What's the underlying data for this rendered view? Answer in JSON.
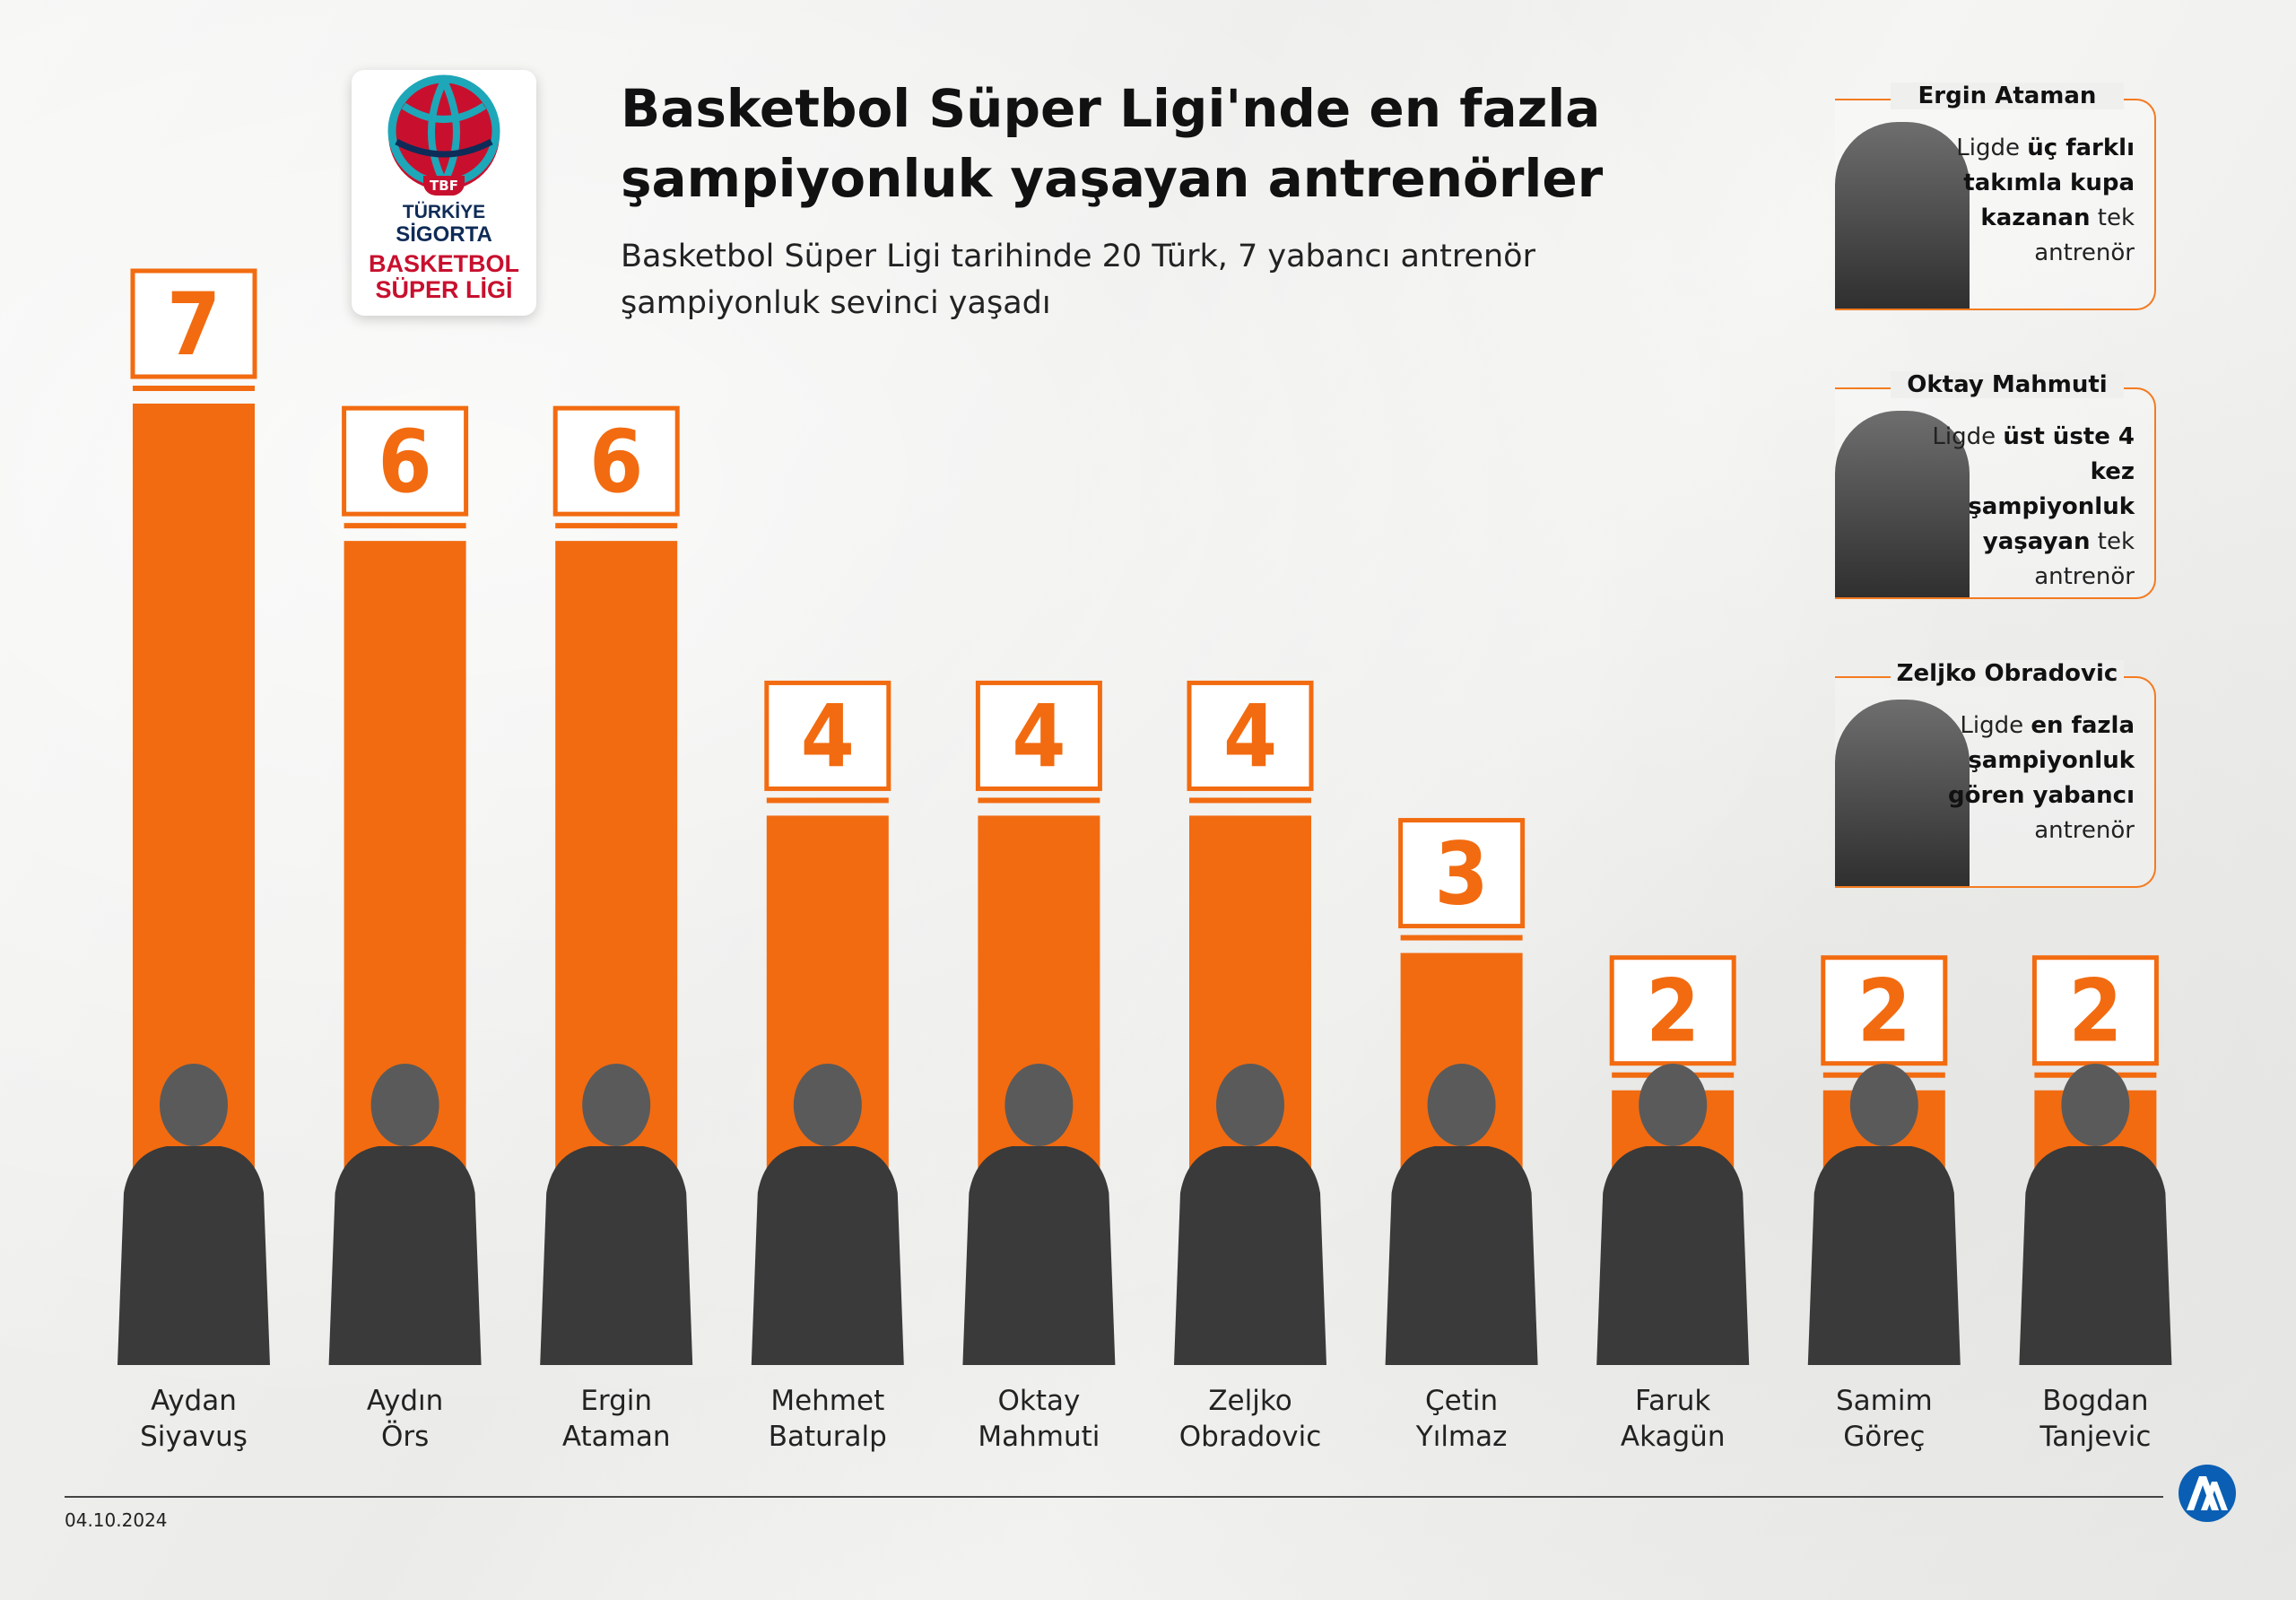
{
  "header": {
    "title_line1": "Basketbol Süper Ligi'nde en fazla",
    "title_line2": "şampiyonluk yaşayan antrenörler",
    "subtitle_line1": "Basketbol Süper Ligi tarihinde 20 Türk, 7 yabancı antrenör",
    "subtitle_line2": "şampiyonluk sevinci yaşadı"
  },
  "logo": {
    "tbf": "TBF",
    "line1": "TÜRKİYE",
    "line2": "SİGORTA",
    "line3": "BASKETBOL",
    "line4": "SÜPER LİGİ"
  },
  "colors": {
    "bar": "#f26b10",
    "info_border": "#f47b20",
    "photo": "#3a3a3a"
  },
  "chart_data": {
    "type": "bar",
    "categories": [
      [
        "Aydan",
        "Siyavuş"
      ],
      [
        "Aydın",
        "Örs"
      ],
      [
        "Ergin",
        "Ataman"
      ],
      [
        "Mehmet",
        "Baturalp"
      ],
      [
        "Oktay",
        "Mahmuti"
      ],
      [
        "Zeljko",
        "Obradovic"
      ],
      [
        "Çetin",
        "Yılmaz"
      ],
      [
        "Faruk",
        "Akagün"
      ],
      [
        "Samim",
        "Göreç"
      ],
      [
        "Bogdan",
        "Tanjevic"
      ]
    ],
    "values": [
      7,
      6,
      6,
      4,
      4,
      4,
      3,
      2,
      2,
      2
    ],
    "ylim": [
      0,
      7
    ],
    "grid": false,
    "data_labels": true
  },
  "info_cards": [
    {
      "name": "Ergin Ataman",
      "text_parts": [
        [
          "Ligde ",
          false
        ],
        [
          "üç farklı takımla kupa kazanan",
          true
        ],
        [
          " tek antrenör",
          false
        ]
      ]
    },
    {
      "name": "Oktay Mahmuti",
      "text_parts": [
        [
          "Ligde ",
          false
        ],
        [
          "üst üste 4 kez şampiyonluk yaşayan",
          true
        ],
        [
          " tek antrenör",
          false
        ]
      ]
    },
    {
      "name": "Zeljko Obradovic",
      "text_parts": [
        [
          "Ligde ",
          false
        ],
        [
          "en fazla şampiyonluk gören yabancı",
          true
        ],
        [
          " antrenör",
          false
        ]
      ]
    }
  ],
  "footer": {
    "date": "04.10.2024",
    "agency_logo": "AA"
  }
}
